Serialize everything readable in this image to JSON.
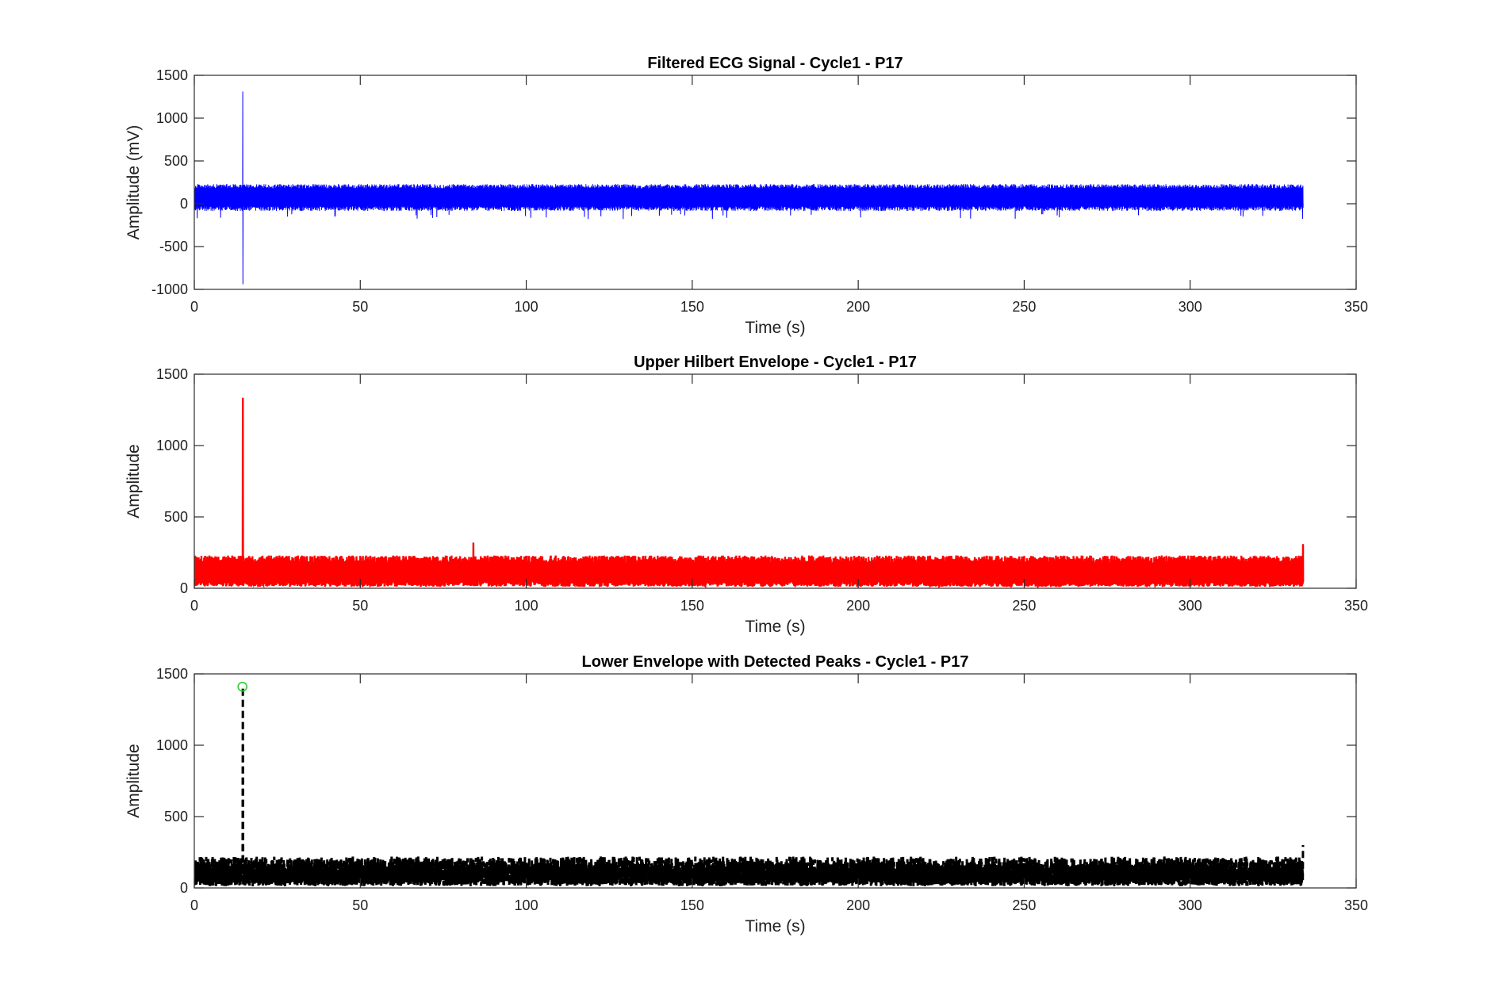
{
  "chart_data": [
    {
      "type": "line",
      "title": "Filtered ECG Signal - Cycle1 - P17",
      "xlabel": "Time (s)",
      "ylabel": "Amplitude (mV)",
      "xlim": [
        0,
        350
      ],
      "ylim": [
        -1000,
        1500
      ],
      "xticks": [
        0,
        50,
        100,
        150,
        200,
        250,
        300,
        350
      ],
      "yticks": [
        -1000,
        -500,
        0,
        500,
        1000,
        1500
      ],
      "grid": false,
      "series": [
        {
          "color": "#0000ff",
          "style": "solid",
          "description_points": {
            "x_range": [
              0,
              334
            ],
            "baseline": 0,
            "typical_peak": 230,
            "typical_trough": -60,
            "spike": {
              "x": 14.5,
              "max": 1310,
              "min": -940
            }
          }
        }
      ]
    },
    {
      "type": "line",
      "title": "Upper Hilbert Envelope - Cycle1 - P17",
      "xlabel": "Time (s)",
      "ylabel": "Amplitude",
      "xlim": [
        0,
        350
      ],
      "ylim": [
        0,
        1500
      ],
      "xticks": [
        0,
        50,
        100,
        150,
        200,
        250,
        300,
        350
      ],
      "yticks": [
        0,
        500,
        1000,
        1500
      ],
      "grid": false,
      "series": [
        {
          "color": "#ff0000",
          "style": "solid",
          "description_points": {
            "x_range": [
              0,
              334
            ],
            "typical_peak": 230,
            "spike": {
              "x": 14.5,
              "max": 1335
            },
            "secondary_peak": {
              "x": 84,
              "max": 320
            },
            "end_peak": {
              "x": 334,
              "max": 310
            }
          }
        }
      ]
    },
    {
      "type": "line",
      "title": "Lower Envelope with Detected Peaks - Cycle1 - P17",
      "xlabel": "Time (s)",
      "ylabel": "Amplitude",
      "xlim": [
        0,
        350
      ],
      "ylim": [
        0,
        1500
      ],
      "xticks": [
        0,
        50,
        100,
        150,
        200,
        250,
        300,
        350
      ],
      "yticks": [
        0,
        500,
        1000,
        1500
      ],
      "grid": false,
      "series": [
        {
          "color": "#000000",
          "style": "dashed",
          "description_points": {
            "x_range": [
              0,
              334
            ],
            "typical_peak": 220,
            "typical_trough": 30,
            "spike": {
              "x": 14.5,
              "max": 1410
            }
          }
        },
        {
          "type": "scatter",
          "color": "#33cc33",
          "marker": "circle",
          "points": [
            {
              "x": 14.5,
              "y": 1410
            }
          ]
        }
      ]
    }
  ]
}
